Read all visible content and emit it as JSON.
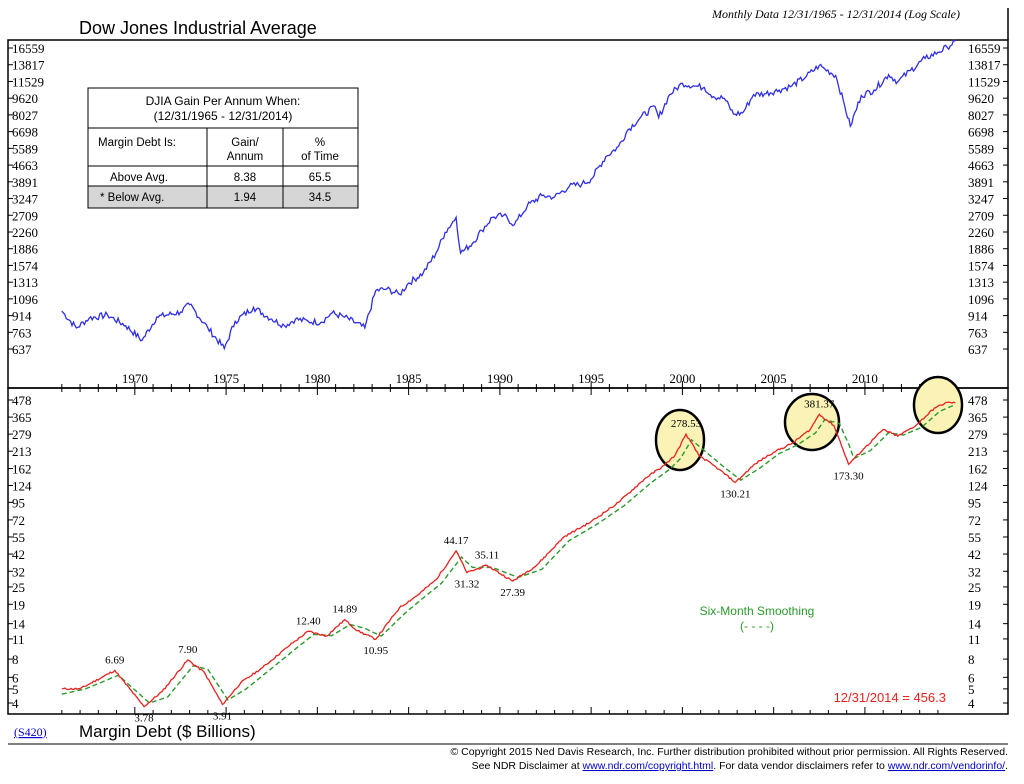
{
  "header": {
    "title": "Dow Jones Industrial Average",
    "subtitle": "Monthly Data 12/31/1965 - 12/31/2014 (Log Scale)"
  },
  "table": {
    "title_line1": "DJIA Gain Per Annum When:",
    "title_line2": "(12/31/1965 - 12/31/2014)",
    "col1_header": "Margin Debt Is:",
    "col2_header_line1": "Gain/",
    "col2_header_line2": "Annum",
    "col3_header_line1": "%",
    "col3_header_line2": "of Time",
    "rows": [
      {
        "label": "Above Avg.",
        "gain": "8.38",
        "pct": "65.5"
      },
      {
        "label": "* Below Avg.",
        "gain": "1.94",
        "pct": "34.5"
      }
    ]
  },
  "bottom": {
    "code": "(S420)",
    "title": "Margin Debt ($ Billions)",
    "legend_label": "Six-Month Smoothing",
    "legend_symbol": "(- - - -)",
    "last_value": "12/31/2014 = 456.3"
  },
  "footer": {
    "line1": "© Copyright 2015 Ned Davis Research, Inc.  Further distribution prohibited without prior permission.  All Rights Reserved.",
    "line2_pre": "See NDR Disclaimer at ",
    "line2_link1": "www.ndr.com/copyright.html",
    "line2_mid": ". For data vendor disclaimers refer to ",
    "line2_link2": "www.ndr.com/vendorinfo/",
    "line2_post": "."
  },
  "colors": {
    "djia": "#2e2ee8",
    "margin": "#e8231e",
    "smooth": "#2a9a2a",
    "circle_fill": "#fbf3b5",
    "last_value": "#e8231e",
    "legend": "#2a9a2a"
  },
  "chart_data": [
    {
      "type": "line",
      "title": "Dow Jones Industrial Average",
      "scale": "log",
      "y_ticks": [
        "16559",
        "13817",
        "11529",
        "9620",
        "8027",
        "6698",
        "5589",
        "4663",
        "3891",
        "3247",
        "2709",
        "2260",
        "1886",
        "1574",
        "1313",
        "1096",
        "914",
        "763",
        "637"
      ],
      "ylim": [
        600,
        18000
      ],
      "xlim": [
        1965.9,
        2015.1
      ],
      "series": [
        {
          "name": "DJIA",
          "x": [
            1966.0,
            1966.8,
            1967.5,
            1968.5,
            1969.5,
            1970.4,
            1971.2,
            1972.5,
            1973.0,
            1974.0,
            1974.9,
            1975.5,
            1976.5,
            1977.5,
            1978.2,
            1978.8,
            1979.5,
            1980.2,
            1980.8,
            1981.5,
            1982.6,
            1983.2,
            1983.8,
            1984.5,
            1985.0,
            1985.8,
            1986.5,
            1987.0,
            1987.6,
            1987.85,
            1988.5,
            1989.0,
            1989.6,
            1990.2,
            1990.8,
            1991.5,
            1992.3,
            1993.0,
            1993.8,
            1994.5,
            1995.0,
            1995.8,
            1996.5,
            1997.0,
            1997.7,
            1998.5,
            1998.7,
            1999.3,
            2000.0,
            2000.6,
            2001.2,
            2001.7,
            2002.3,
            2002.8,
            2003.3,
            2003.9,
            2004.5,
            2005.3,
            2006.0,
            2006.8,
            2007.5,
            2007.8,
            2008.4,
            2008.9,
            2009.2,
            2009.8,
            2010.5,
            2011.3,
            2011.8,
            2012.5,
            2013.3,
            2014.0,
            2014.5,
            2014.95
          ],
          "y": [
            960,
            800,
            890,
            920,
            820,
            700,
            900,
            950,
            1030,
            800,
            640,
            860,
            1000,
            880,
            820,
            880,
            860,
            850,
            940,
            900,
            800,
            1200,
            1220,
            1150,
            1300,
            1450,
            1800,
            2250,
            2650,
            1800,
            2000,
            2300,
            2650,
            2700,
            2450,
            3000,
            3350,
            3300,
            3700,
            3800,
            4000,
            5100,
            5700,
            6800,
            7800,
            8800,
            7800,
            10000,
            11300,
            11000,
            10800,
            9800,
            9600,
            8100,
            8200,
            10000,
            10100,
            10500,
            11000,
            12200,
            13700,
            13200,
            12300,
            8800,
            7100,
            9900,
            10500,
            12400,
            11500,
            13000,
            14800,
            15800,
            16700,
            17823
          ]
        }
      ],
      "x_tick_labels": [
        "1970",
        "1975",
        "1980",
        "1985",
        "1990",
        "1995",
        "2000",
        "2005",
        "2010"
      ]
    },
    {
      "type": "line",
      "title": "Margin Debt ($ Billions)",
      "scale": "log",
      "y_ticks": [
        "478",
        "365",
        "279",
        "213",
        "162",
        "124",
        "95",
        "72",
        "55",
        "42",
        "32",
        "25",
        "19",
        "14",
        "11",
        "8",
        "6",
        "5",
        "4"
      ],
      "ylim": [
        3.5,
        520
      ],
      "xlim": [
        1965.9,
        2015.1
      ],
      "series": [
        {
          "name": "Margin Debt",
          "x": [
            1966.0,
            1967.0,
            1968.9,
            1970.5,
            1971.5,
            1972.9,
            1973.8,
            1974.8,
            1975.8,
            1977.0,
            1978.5,
            1979.5,
            1980.5,
            1981.5,
            1982.2,
            1983.2,
            1984.5,
            1985.5,
            1986.5,
            1987.6,
            1988.2,
            1989.3,
            1990.7,
            1992.0,
            1993.5,
            1995.0,
            1996.5,
            1998.0,
            1999.0,
            1999.6,
            2000.2,
            2000.9,
            2002.0,
            2002.9,
            2004.0,
            2005.0,
            2006.0,
            2007.0,
            2007.5,
            2008.3,
            2008.8,
            2009.1,
            2010.0,
            2011.0,
            2011.8,
            2012.8,
            2013.8,
            2014.5,
            2014.95
          ],
          "y": [
            5.0,
            5.0,
            6.69,
            3.78,
            4.8,
            7.9,
            6.5,
            3.91,
            5.5,
            7.0,
            10.0,
            12.4,
            11.5,
            14.89,
            12.5,
            10.95,
            18.0,
            22.0,
            28.0,
            44.17,
            31.32,
            35.11,
            27.39,
            35.0,
            55.0,
            70.0,
            95.0,
            140.0,
            170.0,
            200.0,
            278.53,
            200.0,
            160.0,
            130.21,
            175.0,
            210.0,
            240.0,
            300.0,
            381.37,
            320.0,
            220.0,
            173.3,
            225.0,
            300.0,
            270.0,
            320.0,
            420.0,
            460.0,
            456.3
          ]
        },
        {
          "name": "Six-Month Smoothing",
          "style": "dashed",
          "x": [
            1966.0,
            1967.3,
            1969.1,
            1970.8,
            1971.8,
            1973.2,
            1974.0,
            1975.1,
            1976.1,
            1977.3,
            1978.8,
            1979.8,
            1980.8,
            1981.8,
            1982.6,
            1983.5,
            1984.8,
            1985.8,
            1986.8,
            1987.9,
            1988.5,
            1989.6,
            1991.0,
            1992.3,
            1993.8,
            1995.3,
            1996.8,
            1998.3,
            1999.3,
            1999.9,
            2000.5,
            2001.2,
            2002.3,
            2003.2,
            2004.3,
            2005.3,
            2006.3,
            2007.3,
            2007.8,
            2008.6,
            2009.1,
            2009.4,
            2010.3,
            2011.3,
            2012.1,
            2013.1,
            2014.1,
            2014.95
          ],
          "y": [
            4.6,
            5.0,
            6.2,
            4.0,
            4.4,
            7.2,
            6.8,
            4.2,
            5.0,
            6.6,
            9.4,
            11.8,
            11.6,
            13.8,
            13.0,
            11.5,
            16.5,
            21.0,
            26.5,
            40.0,
            34.0,
            34.0,
            29.0,
            33.0,
            52.0,
            67.0,
            90.0,
            130.0,
            160.0,
            190.0,
            255.0,
            215.0,
            165.0,
            135.0,
            165.0,
            205.0,
            235.0,
            285.0,
            350.0,
            330.0,
            240.0,
            190.0,
            215.0,
            285.0,
            275.0,
            310.0,
            400.0,
            445.0
          ]
        }
      ],
      "annotations": [
        "6.69",
        "3.78",
        "7.90",
        "3.91",
        "12.40",
        "14.89",
        "10.95",
        "44.17",
        "31.32",
        "35.11",
        "27.39",
        "278.53",
        "130.21",
        "381.37",
        "173.30"
      ]
    }
  ]
}
